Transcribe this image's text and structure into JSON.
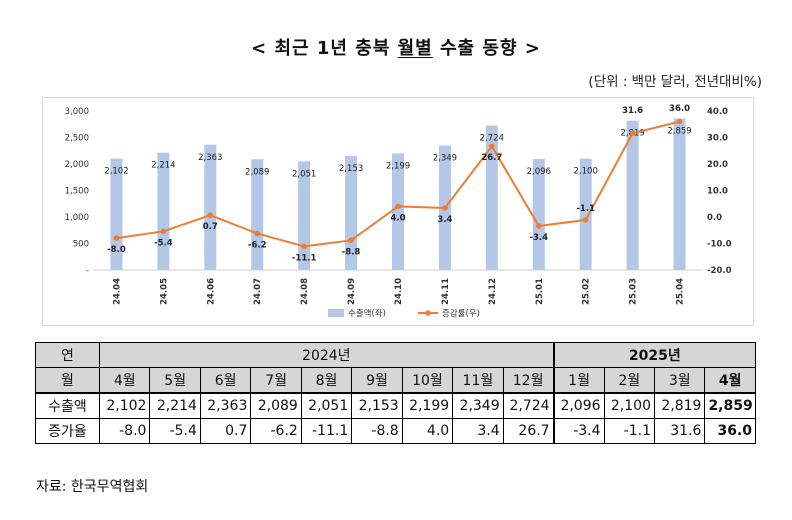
{
  "title_prefix": "< 최근 1년 충북 ",
  "title_underlined": "월별",
  "title_suffix": " 수출 동향 >",
  "unit": "(단위 : 백만 달러, 전년대비%)",
  "chart_data": {
    "type": "bar+line",
    "categories": [
      "24.04",
      "24.05",
      "24.06",
      "24.07",
      "24.08",
      "24.09",
      "24.10",
      "24.11",
      "24.12",
      "25.01",
      "25.02",
      "25.03",
      "25.04"
    ],
    "series": [
      {
        "name": "수출액(좌)",
        "type": "bar",
        "axis": "left",
        "color": "#b4c7e7",
        "values": [
          2102,
          2214,
          2363,
          2089,
          2051,
          2153,
          2199,
          2349,
          2724,
          2096,
          2100,
          2819,
          2859
        ],
        "labels": [
          "2,102",
          "2,214",
          "2,363",
          "2,089",
          "2,051",
          "2,153",
          "2,199",
          "2,349",
          "2,724",
          "2,096",
          "2,100",
          "2,819",
          "2,859"
        ]
      },
      {
        "name": "증감률(우)",
        "type": "line",
        "axis": "right",
        "color": "#ed7d31",
        "values": [
          -8.0,
          -5.4,
          0.7,
          -6.2,
          -11.1,
          -8.8,
          4.0,
          3.4,
          26.7,
          -3.4,
          -1.1,
          31.6,
          36.0
        ],
        "labels": [
          "-8.0",
          "-5.4",
          "0.7",
          "-6.2",
          "-11.1",
          "-8.8",
          "4.0",
          "3.4",
          "26.7",
          "-3.4",
          "-1.1",
          "31.6",
          "36.0"
        ]
      }
    ],
    "ylim_left": [
      0,
      3000
    ],
    "yticks_left": [
      "-",
      "500",
      "1,000",
      "1,500",
      "2,000",
      "2,500",
      "3,000"
    ],
    "ylim_right": [
      -20,
      40
    ],
    "yticks_right": [
      "-20.0",
      "-10.0",
      "0.0",
      "10.0",
      "20.0",
      "30.0",
      "40.0"
    ],
    "legend_position": "bottom",
    "grid": false
  },
  "table": {
    "col_year_label": "연",
    "col_month_label": "월",
    "year_2024": "2024년",
    "year_2025": "2025년",
    "months": [
      "4월",
      "5월",
      "6월",
      "7월",
      "8월",
      "9월",
      "10월",
      "11월",
      "12월",
      "1월",
      "2월",
      "3월",
      "4월"
    ],
    "rows": [
      {
        "label": "수출액",
        "values": [
          "2,102",
          "2,214",
          "2,363",
          "2,089",
          "2,051",
          "2,153",
          "2,199",
          "2,349",
          "2,724",
          "2,096",
          "2,100",
          "2,819",
          "2,859"
        ]
      },
      {
        "label": "증가율",
        "values": [
          "-8.0",
          "-5.4",
          "0.7",
          "-6.2",
          "-11.1",
          "-8.8",
          "4.0",
          "3.4",
          "26.7",
          "-3.4",
          "-1.1",
          "31.6",
          "36.0"
        ]
      }
    ]
  },
  "source": "자료: 한국무역협회"
}
